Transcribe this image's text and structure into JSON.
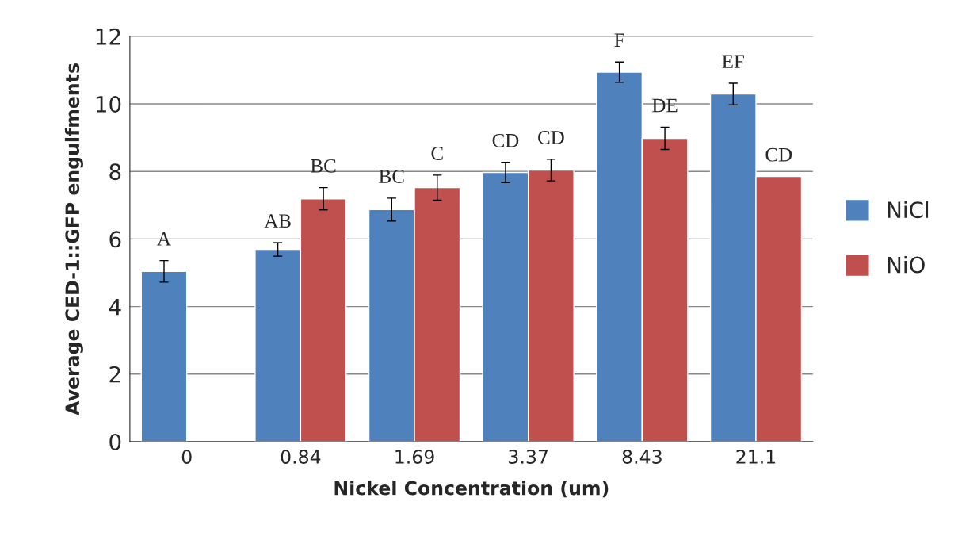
{
  "chart_data": {
    "type": "bar",
    "xlabel": "Nickel Concentration (um)",
    "ylabel": "Average CED-1::GFP engulfments",
    "categories": [
      "0",
      "0.84",
      "1.69",
      "3.37",
      "8.43",
      "21.1"
    ],
    "series": [
      {
        "name": "NiCl",
        "color": "#4f81bd",
        "values": [
          5.04,
          5.69,
          6.87,
          7.97,
          10.94,
          10.29
        ],
        "errors": [
          0.32,
          0.2,
          0.34,
          0.3,
          0.3,
          0.32
        ],
        "value_labels": [
          "A",
          "AB",
          "BC",
          "CD",
          "F",
          "EF"
        ]
      },
      {
        "name": "NiO",
        "color": "#c0504d",
        "values": [
          null,
          7.19,
          7.52,
          8.04,
          8.98,
          7.85
        ],
        "errors": [
          null,
          0.33,
          0.37,
          0.32,
          0.33,
          null
        ],
        "value_labels": [
          null,
          "BC",
          "C",
          "CD",
          "DE",
          "CD"
        ]
      }
    ],
    "ylim": [
      0,
      12
    ],
    "yticks": [
      0,
      2,
      4,
      6,
      8,
      10,
      12
    ],
    "grid": "y",
    "legend": "right"
  }
}
